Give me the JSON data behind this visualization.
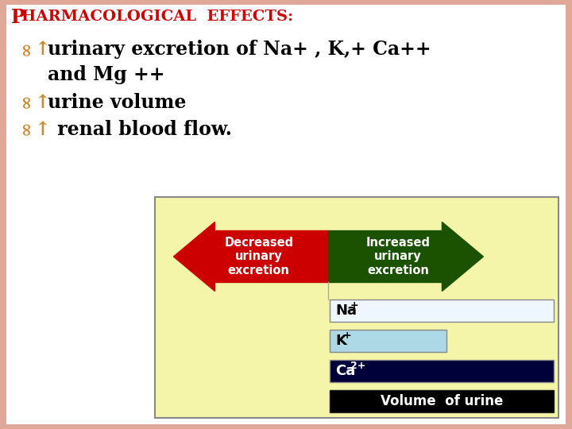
{
  "bg_color": "#ffffff",
  "border_left_color": "#e0a898",
  "title": "PHARMACOLOGICAL EFFECTS:",
  "title_color": "#cc0000",
  "title_fontsize": 15,
  "bullet_color": "#cc8833",
  "arrow_up": "↑",
  "text_color": "#000000",
  "text_fontsize": 17,
  "box_bg": "#f5f5aa",
  "box_border": "#888888",
  "left_arrow_color": "#cc0000",
  "right_arrow_color": "#1a5200",
  "left_arrow_text": "Decreased\nurinary\nexcretion",
  "right_arrow_text": "Increased\nurinary\nexcretion",
  "na_bar_color": "#eef6ff",
  "na_text": "Na",
  "na_super": "+",
  "k_bar_color": "#add8e6",
  "k_text": "K",
  "k_super": "+",
  "ca_bar_color": "#00003a",
  "ca_text": "Ca",
  "ca_super": "2+",
  "ca_text_color": "#ffffff",
  "vol_bar_color": "#000000",
  "vol_text": "Volume  of urine",
  "vol_text_color": "#ffffff"
}
